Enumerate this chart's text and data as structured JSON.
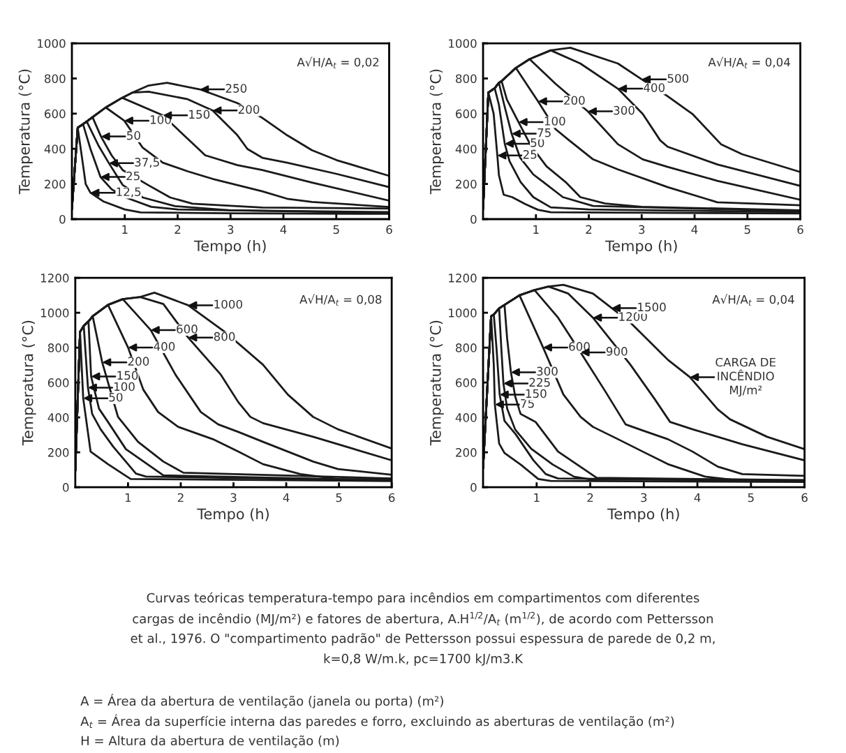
{
  "chart_data": [
    {
      "type": "line",
      "xlabel": "Tempo (h)",
      "ylabel": "Temperatura (°C)",
      "xlim": [
        0,
        6
      ],
      "ylim": [
        0,
        1000
      ],
      "xticks": [
        1,
        2,
        3,
        4,
        5,
        6
      ],
      "yticks": [
        0,
        200,
        400,
        600,
        800,
        1000
      ],
      "grid": false,
      "legend": false,
      "marker": "none",
      "line_style": "solid",
      "series": [
        {
          "color": "#1a1a1a",
          "x": [
            0,
            0.11,
            0.2,
            0.26,
            0.35,
            0.6,
            1.0,
            1.3,
            3,
            6
          ],
          "values": [
            60,
            520,
            330,
            200,
            150,
            100,
            55,
            38,
            33,
            30
          ]
        },
        {
          "color": "#1a1a1a",
          "x": [
            0,
            0.11,
            0.21,
            0.35,
            0.54,
            0.75,
            1.0,
            1.5,
            2.0,
            6
          ],
          "values": [
            60,
            520,
            540,
            400,
            240,
            170,
            125,
            70,
            55,
            35
          ]
        },
        {
          "color": "#1a1a1a",
          "x": [
            0,
            0.11,
            0.21,
            0.28,
            0.5,
            0.7,
            0.96,
            1.34,
            1.95,
            3,
            6
          ],
          "values": [
            60,
            520,
            540,
            555,
            420,
            318,
            194,
            123,
            74,
            50,
            40
          ]
        },
        {
          "color": "#1a1a1a",
          "x": [
            0,
            0.11,
            0.21,
            0.28,
            0.39,
            0.55,
            0.75,
            0.96,
            1.44,
            1.86,
            2.28,
            3.6,
            6
          ],
          "values": [
            60,
            520,
            540,
            555,
            580,
            470,
            363,
            279,
            194,
            123,
            88,
            66,
            60
          ]
        },
        {
          "color": "#1a1a1a",
          "x": [
            0,
            0.11,
            0.21,
            0.28,
            0.39,
            0.64,
            0.99,
            1.34,
            1.72,
            2.19,
            2.66,
            3.6,
            4.07,
            4.54,
            6
          ],
          "values": [
            60,
            520,
            540,
            555,
            580,
            635,
            560,
            406,
            321,
            272,
            229,
            158,
            116,
            98,
            69
          ]
        },
        {
          "color": "#1a1a1a",
          "x": [
            0,
            0.11,
            0.21,
            0.28,
            0.39,
            0.64,
            0.95,
            1.72,
            2.42,
            2.52,
            3.13,
            3.6,
            4.54,
            6
          ],
          "values": [
            60,
            520,
            540,
            555,
            580,
            635,
            690,
            590,
            392,
            363,
            307,
            279,
            208,
            105
          ]
        },
        {
          "color": "#1a1a1a",
          "x": [
            0,
            0.11,
            0.21,
            0.28,
            0.39,
            0.64,
            0.95,
            1.15,
            1.45,
            2.19,
            2.66,
            3.13,
            3.32,
            3.6,
            4.07,
            5.01,
            6
          ],
          "values": [
            60,
            520,
            540,
            555,
            580,
            635,
            690,
            720,
            725,
            682,
            618,
            477,
            399,
            349,
            321,
            257,
            182
          ]
        },
        {
          "color": "#1a1a1a",
          "x": [
            0,
            0.11,
            0.21,
            0.28,
            0.39,
            0.64,
            0.95,
            1.15,
            1.45,
            1.8,
            2.42,
            3.13,
            3.6,
            4.07,
            4.54,
            5.01,
            6
          ],
          "values": [
            60,
            520,
            540,
            555,
            580,
            635,
            690,
            720,
            760,
            775,
            738,
            660,
            576,
            477,
            392,
            335,
            246
          ]
        }
      ],
      "annotations": [
        "A√H/A$_{t}$ = 0,02",
        {
          "text": "12,5",
          "x": 0.35,
          "y": 150
        },
        {
          "text": "25",
          "x": 0.54,
          "y": 240
        },
        {
          "text": "37,5",
          "x": 0.7,
          "y": 318
        },
        {
          "text": "50",
          "x": 0.55,
          "y": 470
        },
        {
          "text": "100",
          "x": 0.99,
          "y": 560
        },
        {
          "text": "150",
          "x": 1.72,
          "y": 590
        },
        {
          "text": "200",
          "x": 2.66,
          "y": 618
        },
        {
          "text": "250",
          "x": 2.42,
          "y": 738
        }
      ]
    },
    {
      "type": "line",
      "xlabel": "Tempo (h)",
      "ylabel": "Temperatura (°C)",
      "xlim": [
        0,
        6
      ],
      "ylim": [
        0,
        1000
      ],
      "xticks": [
        1,
        2,
        3,
        4,
        5,
        6
      ],
      "yticks": [
        0,
        200,
        400,
        600,
        800,
        1000
      ],
      "grid": false,
      "legend": false,
      "marker": "none",
      "line_style": "solid",
      "series": [
        {
          "color": "#1a1a1a",
          "x": [
            0,
            0.1,
            0.2,
            0.27,
            0.3,
            0.39,
            0.55,
            0.8,
            1.04,
            1.28,
            6
          ],
          "values": [
            60,
            720,
            600,
            362,
            250,
            139,
            125,
            85,
            53,
            39,
            32
          ]
        },
        {
          "color": "#1a1a1a",
          "x": [
            0,
            0.1,
            0.22,
            0.3,
            0.41,
            0.5,
            0.71,
            0.95,
            1.28,
            2,
            6
          ],
          "values": [
            60,
            720,
            745,
            650,
            429,
            330,
            211,
            125,
            67,
            55,
            40
          ]
        },
        {
          "color": "#1a1a1a",
          "x": [
            0,
            0.1,
            0.22,
            0.3,
            0.4,
            0.54,
            0.7,
            0.95,
            1.14,
            1.51,
            2.08,
            6
          ],
          "values": [
            60,
            720,
            745,
            775,
            650,
            486,
            350,
            254,
            211,
            125,
            75,
            45
          ]
        },
        {
          "color": "#1a1a1a",
          "x": [
            0,
            0.1,
            0.22,
            0.3,
            0.35,
            0.45,
            0.67,
            0.9,
            1.2,
            1.56,
            1.84,
            2.31,
            3,
            6
          ],
          "values": [
            60,
            720,
            745,
            775,
            785,
            680,
            552,
            420,
            300,
            211,
            125,
            89,
            70,
            50
          ]
        },
        {
          "color": "#1a1a1a",
          "x": [
            0,
            0.1,
            0.22,
            0.3,
            0.35,
            0.62,
            1.04,
            1.37,
            1.6,
            2.08,
            2.55,
            3.49,
            4.43,
            6
          ],
          "values": [
            60,
            720,
            745,
            775,
            785,
            860,
            670,
            512,
            455,
            340,
            283,
            182,
            96,
            79
          ]
        },
        {
          "color": "#1a1a1a",
          "x": [
            0,
            0.1,
            0.22,
            0.3,
            0.35,
            0.62,
            0.88,
            1.37,
            1.98,
            2.55,
            3.02,
            3.49,
            4.43,
            6
          ],
          "values": [
            60,
            720,
            745,
            775,
            785,
            860,
            910,
            770,
            613,
            426,
            340,
            297,
            218,
            110
          ]
        },
        {
          "color": "#1a1a1a",
          "x": [
            0,
            0.1,
            0.22,
            0.3,
            0.35,
            0.62,
            0.88,
            1.28,
            1.84,
            2.55,
            3.02,
            3.35,
            3.49,
            4.43,
            6
          ],
          "values": [
            60,
            720,
            745,
            775,
            785,
            860,
            910,
            960,
            885,
            742,
            598,
            448,
            412,
            311,
            189
          ]
        },
        {
          "color": "#1a1a1a",
          "x": [
            0,
            0.1,
            0.22,
            0.3,
            0.35,
            0.62,
            0.88,
            1.28,
            1.65,
            2.55,
            3.0,
            3.49,
            3.96,
            4.5,
            4.9,
            6
          ],
          "values": [
            60,
            720,
            745,
            775,
            785,
            860,
            910,
            960,
            975,
            885,
            795,
            699,
            598,
            426,
            369,
            268
          ]
        }
      ],
      "annotations": [
        "A√H/A$_{t}$ = 0,04",
        {
          "text": "25",
          "x": 0.27,
          "y": 362
        },
        {
          "text": "50",
          "x": 0.41,
          "y": 429
        },
        {
          "text": "75",
          "x": 0.54,
          "y": 486
        },
        {
          "text": "100",
          "x": 0.67,
          "y": 552
        },
        {
          "text": "200",
          "x": 1.04,
          "y": 670
        },
        {
          "text": "300",
          "x": 1.98,
          "y": 613
        },
        {
          "text": "400",
          "x": 2.55,
          "y": 742
        },
        {
          "text": "500",
          "x": 3.0,
          "y": 795
        }
      ]
    },
    {
      "type": "line",
      "xlabel": "Tempo (h)",
      "ylabel": "Temperatura (°C)",
      "xlim": [
        0,
        6
      ],
      "ylim": [
        0,
        1200
      ],
      "xticks": [
        1,
        2,
        3,
        4,
        5,
        6
      ],
      "yticks": [
        0,
        200,
        400,
        600,
        800,
        1000,
        1200
      ],
      "grid": false,
      "legend": false,
      "marker": "none",
      "line_style": "solid",
      "series": [
        {
          "color": "#1a1a1a",
          "x": [
            0,
            0.09,
            0.12,
            0.15,
            0.29,
            0.62,
            1.05,
            6
          ],
          "values": [
            97,
            890,
            700,
            510,
            204,
            132,
            47,
            35
          ]
        },
        {
          "color": "#1a1a1a",
          "x": [
            0,
            0.09,
            0.16,
            0.24,
            0.32,
            0.48,
            0.72,
            1.15,
            1.34,
            6
          ],
          "values": [
            97,
            890,
            925,
            571,
            420,
            332,
            232,
            78,
            61,
            40
          ]
        },
        {
          "color": "#1a1a1a",
          "x": [
            0,
            0.09,
            0.16,
            0.25,
            0.3,
            0.45,
            0.62,
            0.96,
            1.67,
            6
          ],
          "values": [
            97,
            890,
            925,
            950,
            635,
            450,
            374,
            218,
            68,
            40
          ]
        },
        {
          "color": "#1a1a1a",
          "x": [
            0,
            0.09,
            0.16,
            0.25,
            0.33,
            0.51,
            0.81,
            1.19,
            1.67,
            2.05,
            6
          ],
          "values": [
            97,
            890,
            925,
            950,
            980,
            716,
            403,
            260,
            147,
            83,
            50
          ]
        },
        {
          "color": "#1a1a1a",
          "x": [
            0,
            0.09,
            0.16,
            0.25,
            0.33,
            0.62,
            1.0,
            1.29,
            1.57,
            1.95,
            2.61,
            3.09,
            3.56,
            4.27,
            4.98,
            6
          ],
          "values": [
            97,
            890,
            925,
            950,
            980,
            1045,
            801,
            559,
            431,
            346,
            275,
            204,
            132,
            75,
            47,
            45
          ]
        },
        {
          "color": "#1a1a1a",
          "x": [
            0,
            0.09,
            0.16,
            0.25,
            0.33,
            0.62,
            0.9,
            1.43,
            1.9,
            2.38,
            2.71,
            3.09,
            3.56,
            4.51,
            4.98,
            6
          ],
          "values": [
            97,
            890,
            925,
            950,
            980,
            1045,
            1078,
            901,
            645,
            431,
            360,
            317,
            260,
            147,
            104,
            71
          ]
        },
        {
          "color": "#1a1a1a",
          "x": [
            0,
            0.09,
            0.16,
            0.25,
            0.33,
            0.62,
            0.9,
            1.23,
            1.67,
            2.14,
            2.76,
            3.09,
            3.32,
            3.56,
            4.51,
            6
          ],
          "values": [
            97,
            890,
            925,
            950,
            980,
            1045,
            1078,
            1090,
            1050,
            858,
            645,
            488,
            403,
            367,
            289,
            154
          ]
        },
        {
          "color": "#1a1a1a",
          "x": [
            0,
            0.09,
            0.16,
            0.25,
            0.33,
            0.62,
            0.9,
            1.23,
            1.5,
            2.14,
            2.85,
            3.56,
            4.03,
            4.51,
            4.98,
            6
          ],
          "values": [
            97,
            890,
            925,
            950,
            980,
            1045,
            1078,
            1090,
            1115,
            1043,
            887,
            702,
            531,
            403,
            332,
            222
          ]
        }
      ],
      "annotations": [
        "A√H/A$_{t}$ = 0,08",
        {
          "text": "50",
          "x": 0.15,
          "y": 510
        },
        {
          "text": "100",
          "x": 0.24,
          "y": 571
        },
        {
          "text": "150",
          "x": 0.3,
          "y": 635
        },
        {
          "text": "200",
          "x": 0.51,
          "y": 716
        },
        {
          "text": "400",
          "x": 1.0,
          "y": 801
        },
        {
          "text": "600",
          "x": 1.43,
          "y": 901
        },
        {
          "text": "800",
          "x": 2.14,
          "y": 858
        },
        {
          "text": "1000",
          "x": 2.14,
          "y": 1043
        }
      ]
    },
    {
      "type": "line",
      "xlabel": "Tempo (h)",
      "ylabel": "Temperatura (°C)",
      "xlim": [
        0,
        6
      ],
      "ylim": [
        0,
        1200
      ],
      "xticks": [
        1,
        2,
        3,
        4,
        5,
        6
      ],
      "yticks": [
        0,
        200,
        400,
        600,
        800,
        1000,
        1200
      ],
      "grid": false,
      "legend": false,
      "marker": "none",
      "line_style": "solid",
      "series": [
        {
          "color": "#1a1a1a",
          "x": [
            0,
            0.15,
            0.2,
            0.22,
            0.3,
            0.4,
            0.7,
            1.03,
            1.26,
            6
          ],
          "values": [
            110,
            980,
            700,
            474,
            250,
            196,
            130,
            47,
            36,
            30
          ]
        },
        {
          "color": "#1a1a1a",
          "x": [
            0,
            0.15,
            0.2,
            0.25,
            0.31,
            0.4,
            0.61,
            0.94,
            1.17,
            1.4,
            6
          ],
          "values": [
            110,
            980,
            990,
            800,
            531,
            380,
            303,
            154,
            75,
            50,
            35
          ]
        },
        {
          "color": "#1a1a1a",
          "x": [
            0,
            0.15,
            0.2,
            0.3,
            0.34,
            0.38,
            0.45,
            0.6,
            0.9,
            1.3,
            1.7,
            2.0,
            6
          ],
          "values": [
            110,
            980,
            990,
            1025,
            800,
            595,
            450,
            330,
            220,
            130,
            60,
            45,
            40
          ]
        },
        {
          "color": "#1a1a1a",
          "x": [
            0,
            0.15,
            0.2,
            0.3,
            0.4,
            0.45,
            0.52,
            0.6,
            0.7,
            0.98,
            1.4,
            2.12,
            6
          ],
          "values": [
            110,
            980,
            990,
            1025,
            1045,
            850,
            659,
            520,
            420,
            374,
            204,
            54,
            40
          ]
        },
        {
          "color": "#1a1a1a",
          "x": [
            0,
            0.15,
            0.2,
            0.3,
            0.4,
            0.68,
            1.12,
            1.5,
            1.82,
            2.05,
            2.52,
            2.98,
            3.45,
            4.14,
            4.84,
            6
          ],
          "values": [
            110,
            980,
            990,
            1025,
            1045,
            1100,
            801,
            531,
            403,
            346,
            275,
            204,
            132,
            61,
            36,
            40
          ]
        },
        {
          "color": "#1a1a1a",
          "x": [
            0,
            0.15,
            0.2,
            0.3,
            0.4,
            0.68,
            0.96,
            1.4,
            1.82,
            2.29,
            2.66,
            2.98,
            3.45,
            3.91,
            4.38,
            4.84,
            6
          ],
          "values": [
            110,
            980,
            990,
            1025,
            1045,
            1100,
            1130,
            972,
            773,
            545,
            360,
            325,
            275,
            204,
            118,
            75,
            65
          ]
        },
        {
          "color": "#1a1a1a",
          "x": [
            0,
            0.15,
            0.2,
            0.3,
            0.4,
            0.68,
            0.96,
            1.22,
            1.59,
            2.05,
            2.75,
            3.21,
            3.49,
            3.91,
            4.84,
            6
          ],
          "values": [
            110,
            980,
            990,
            1025,
            1045,
            1100,
            1130,
            1150,
            1110,
            972,
            702,
            502,
            374,
            332,
            246,
            154
          ]
        },
        {
          "color": "#1a1a1a",
          "x": [
            0,
            0.15,
            0.2,
            0.3,
            0.4,
            0.68,
            0.96,
            1.22,
            1.5,
            2.05,
            2.4,
            2.75,
            3.45,
            3.86,
            4.38,
            4.61,
            5.3,
            6
          ],
          "values": [
            110,
            980,
            990,
            1025,
            1045,
            1100,
            1130,
            1150,
            1160,
            1110,
            1027,
            944,
            730,
            631,
            446,
            389,
            289,
            218
          ]
        }
      ],
      "annotations": [
        "A√H/A$_{t}$ = 0,04",
        {
          "text": "75",
          "x": 0.22,
          "y": 474
        },
        {
          "text": "150",
          "x": 0.31,
          "y": 531
        },
        {
          "text": "225",
          "x": 0.38,
          "y": 595
        },
        {
          "text": "300",
          "x": 0.52,
          "y": 659
        },
        {
          "text": "600",
          "x": 1.12,
          "y": 801
        },
        {
          "text": "900",
          "x": 1.82,
          "y": 773
        },
        {
          "text": "1200",
          "x": 2.05,
          "y": 972
        },
        {
          "text": "1500",
          "x": 2.4,
          "y": 1027
        },
        {
          "text": "CARGA DE\nINCÊNDIO\nMJ/m²",
          "x": 3.86,
          "y": 631
        },
        "Curvas teóricas temperatura-tempo para incêndios em compartimentos com diferentes",
        "cargas de incêndio (MJ/m²) e fatores de abertura, A.H$^{1/2}$/A$_{t}$ (m$^{1/2}$), de acordo com Pettersson",
        "et al., 1976. O \"compartimento padrão\" de Pettersson possui espessura de parede de 0,2 m,",
        "k=0,8 W/m.k, pc=1700 kJ/m3.K",
        "A = Área da abertura de ventilação (janela ou porta) (m²)",
        "A$_{t}$ = Área da superfície interna das paredes e forro, excluindo as aberturas de ventilação (m²)",
        "H = Altura da abertura de ventilação (m)"
      ]
    }
  ]
}
